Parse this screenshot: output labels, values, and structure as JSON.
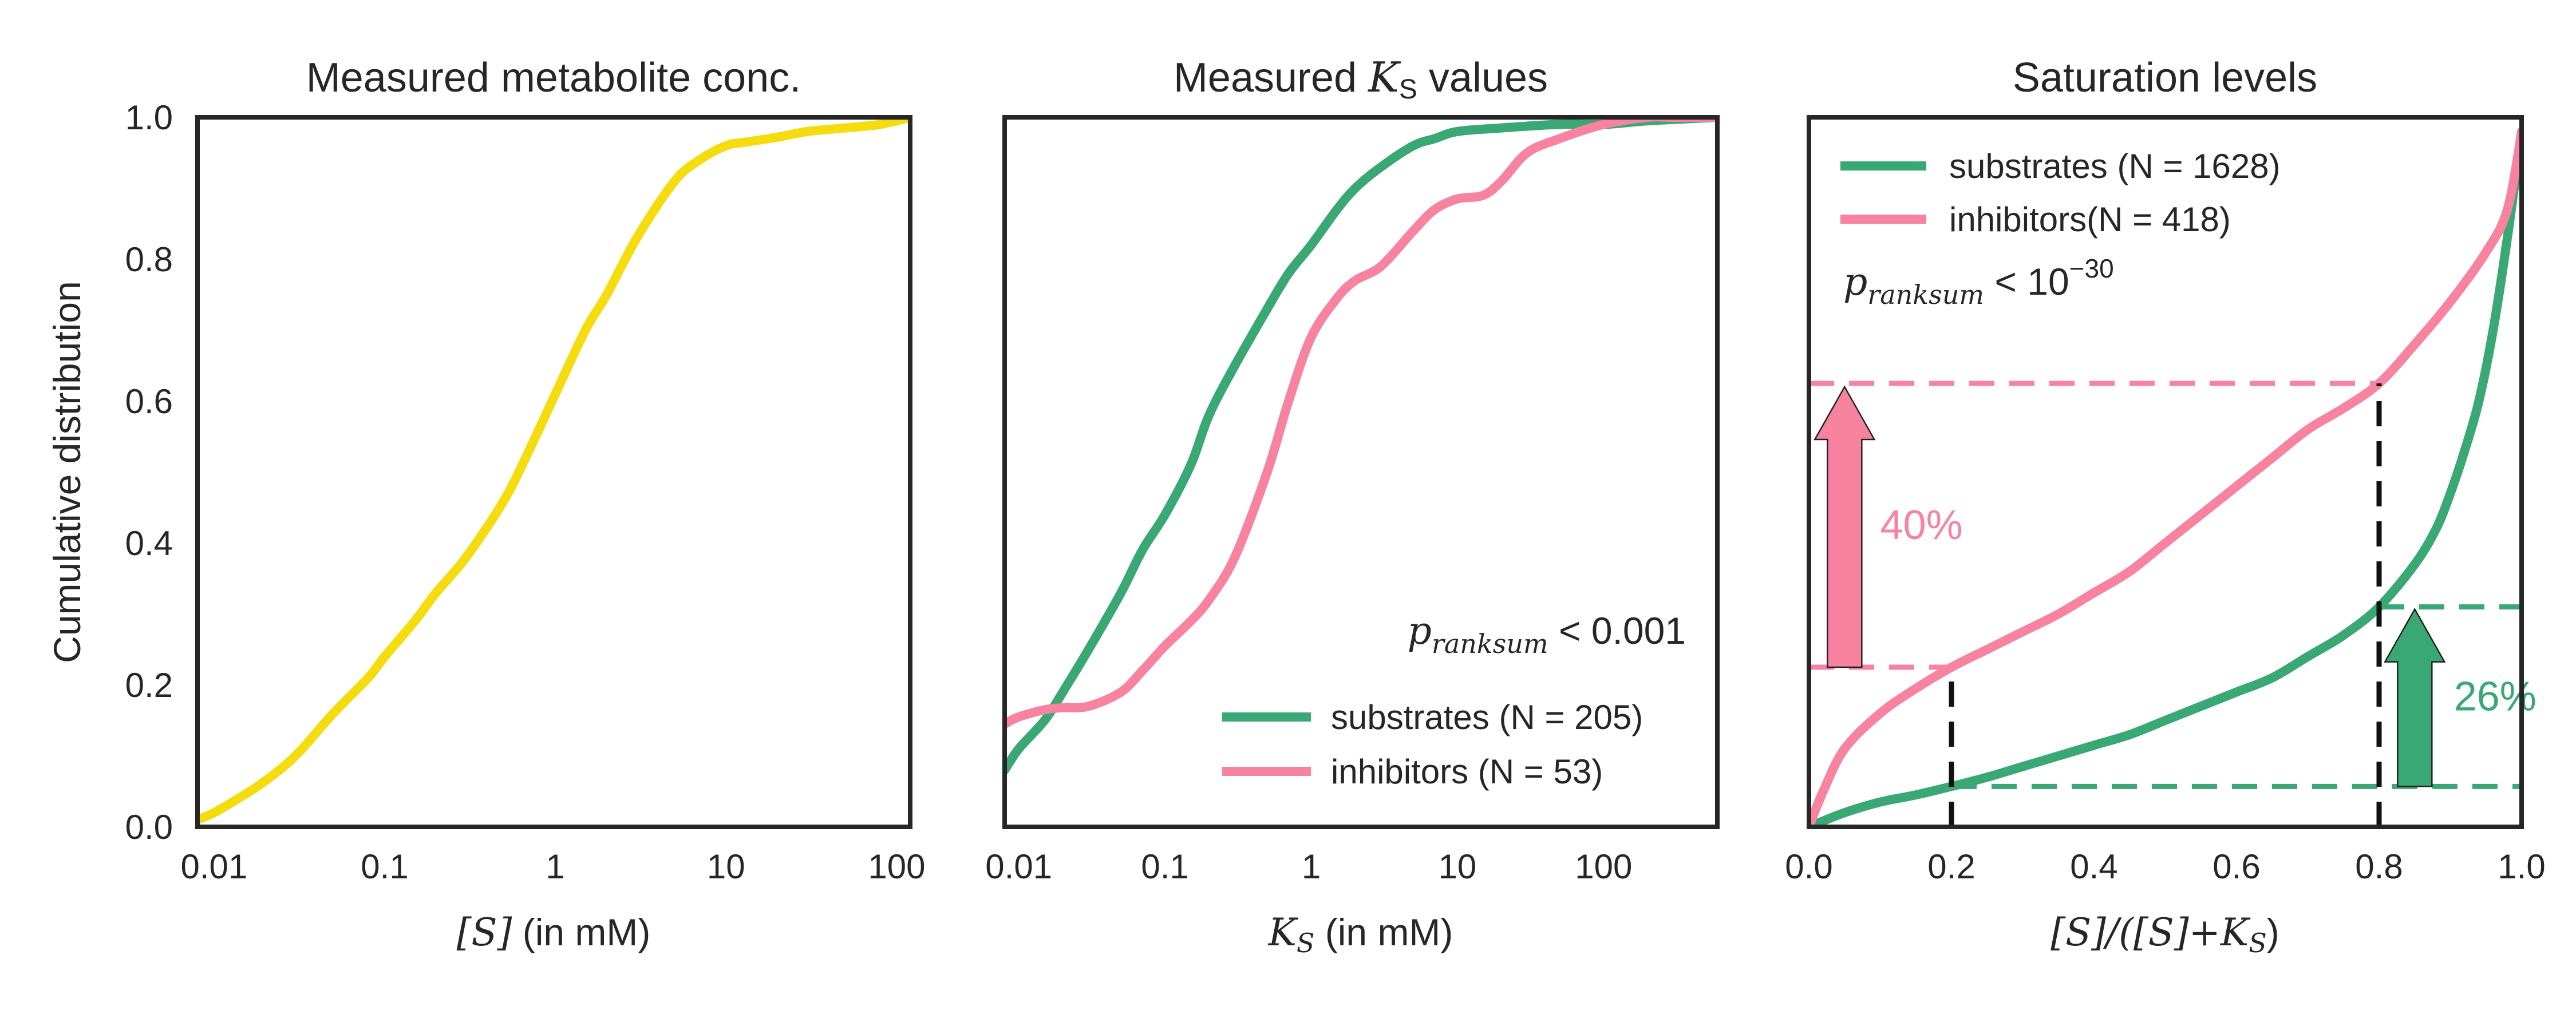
{
  "colors": {
    "yellow": "#f5dc0f",
    "green": "#3aa874",
    "pink": "#f783a0",
    "frame": "#262626",
    "black": "#111111"
  },
  "chart_data": [
    {
      "type": "line",
      "title": "Measured metabolite conc.",
      "xlabel_math": "[S]",
      "xlabel_rest": " (in mM)",
      "ylabel": "Cumulative distribution",
      "xscale": "log",
      "xlim": [
        0.008,
        120
      ],
      "ylim": [
        0,
        1
      ],
      "xticks": [
        0.01,
        0.1,
        1,
        10,
        100
      ],
      "xtick_labels": [
        "0.01",
        "0.1",
        "1",
        "10",
        "100"
      ],
      "yticks": [
        0,
        0.2,
        0.4,
        0.6,
        0.8,
        1.0
      ],
      "ytick_labels": [
        "0.0",
        "0.2",
        "0.4",
        "0.6",
        "0.8",
        "1.0"
      ],
      "series": [
        {
          "color": "yellow",
          "x": [
            0.008,
            0.01,
            0.015,
            0.02,
            0.03,
            0.05,
            0.08,
            0.1,
            0.15,
            0.2,
            0.3,
            0.5,
            0.7,
            1,
            1.5,
            2,
            3,
            5,
            7,
            10,
            13,
            20,
            30,
            50,
            80,
            120
          ],
          "y": [
            0.01,
            0.02,
            0.045,
            0.065,
            0.1,
            0.16,
            0.21,
            0.24,
            0.29,
            0.33,
            0.38,
            0.46,
            0.53,
            0.61,
            0.7,
            0.75,
            0.83,
            0.91,
            0.94,
            0.96,
            0.965,
            0.972,
            0.98,
            0.985,
            0.99,
            1.0
          ]
        }
      ]
    },
    {
      "type": "line",
      "title_pre": "Measured ",
      "title_math": "K",
      "title_sub": "S",
      "title_post": " values",
      "xlabel_math": "K",
      "xlabel_sub": "S",
      "xlabel_rest": " (in mM)",
      "xscale": "log",
      "xlim": [
        0.008,
        600
      ],
      "ylim": [
        0,
        1
      ],
      "xticks": [
        0.01,
        0.1,
        1,
        10,
        100
      ],
      "xtick_labels": [
        "0.01",
        "0.1",
        "1",
        "10",
        "100"
      ],
      "annotation": {
        "p_label": "p",
        "p_sub": "ranksum",
        "p_rest": " < 0.001"
      },
      "series": [
        {
          "name": "substrates (N = 205)",
          "color": "green",
          "x": [
            0.008,
            0.01,
            0.015,
            0.02,
            0.03,
            0.05,
            0.07,
            0.1,
            0.15,
            0.2,
            0.3,
            0.5,
            0.7,
            1,
            1.5,
            2,
            3,
            5,
            7,
            10,
            20,
            50,
            100,
            200,
            600
          ],
          "y": [
            0.08,
            0.11,
            0.15,
            0.19,
            0.25,
            0.33,
            0.39,
            0.44,
            0.51,
            0.58,
            0.65,
            0.73,
            0.78,
            0.82,
            0.87,
            0.9,
            0.93,
            0.96,
            0.97,
            0.98,
            0.985,
            0.99,
            0.99,
            0.995,
            1.0
          ]
        },
        {
          "name": "inhibitors (N = 53)",
          "color": "pink",
          "x": [
            0.008,
            0.01,
            0.015,
            0.02,
            0.03,
            0.05,
            0.07,
            0.1,
            0.15,
            0.2,
            0.3,
            0.5,
            0.7,
            1,
            1.5,
            2,
            3,
            5,
            7,
            10,
            15,
            20,
            30,
            50,
            100,
            200,
            300,
            600
          ],
          "y": [
            0.145,
            0.155,
            0.165,
            0.168,
            0.17,
            0.19,
            0.22,
            0.255,
            0.29,
            0.32,
            0.38,
            0.5,
            0.6,
            0.69,
            0.745,
            0.77,
            0.79,
            0.84,
            0.87,
            0.885,
            0.89,
            0.91,
            0.95,
            0.97,
            0.99,
            1.0,
            1.0,
            1.0
          ]
        }
      ]
    },
    {
      "type": "line",
      "title": "Saturation levels",
      "xlabel_math": "[S]/([S]+K",
      "xlabel_sub": "S",
      "xlabel_post": ")",
      "xscale": "linear",
      "xlim": [
        0,
        1
      ],
      "ylim": [
        0,
        1
      ],
      "xticks": [
        0,
        0.2,
        0.4,
        0.6,
        0.8,
        1.0
      ],
      "xtick_labels": [
        "0.0",
        "0.2",
        "0.4",
        "0.6",
        "0.8",
        "1.0"
      ],
      "annotation": {
        "p_label": "p",
        "p_sub": "ranksum",
        "p_rest": " < 10",
        "p_exp": "−30"
      },
      "series": [
        {
          "name": "substrates (N = 1628)",
          "color": "green",
          "x": [
            0.0,
            0.05,
            0.1,
            0.15,
            0.2,
            0.25,
            0.3,
            0.35,
            0.4,
            0.45,
            0.5,
            0.55,
            0.6,
            0.65,
            0.7,
            0.75,
            0.8,
            0.85,
            0.88,
            0.9,
            0.92,
            0.94,
            0.96,
            0.98,
            1.0
          ],
          "y": [
            0.0,
            0.02,
            0.035,
            0.045,
            0.057,
            0.07,
            0.085,
            0.1,
            0.115,
            0.13,
            0.15,
            0.17,
            0.19,
            0.21,
            0.24,
            0.27,
            0.31,
            0.37,
            0.42,
            0.47,
            0.53,
            0.6,
            0.7,
            0.83,
            0.98
          ]
        },
        {
          "name": "inhibitors(N = 418)",
          "color": "pink",
          "x": [
            0.0,
            0.02,
            0.05,
            0.1,
            0.15,
            0.2,
            0.25,
            0.3,
            0.35,
            0.4,
            0.45,
            0.5,
            0.55,
            0.6,
            0.65,
            0.7,
            0.75,
            0.8,
            0.85,
            0.9,
            0.95,
            0.98,
            1.0
          ],
          "y": [
            0.0,
            0.05,
            0.11,
            0.16,
            0.195,
            0.225,
            0.25,
            0.275,
            0.3,
            0.33,
            0.36,
            0.4,
            0.44,
            0.48,
            0.52,
            0.56,
            0.59,
            0.625,
            0.68,
            0.74,
            0.81,
            0.87,
            0.98
          ]
        }
      ],
      "reference_levels": {
        "x_low": 0.2,
        "x_high": 0.8,
        "pink_low": 0.225,
        "pink_high": 0.625,
        "green_low": 0.057,
        "green_high": 0.31
      },
      "differences": [
        {
          "label": "40%",
          "color": "pink"
        },
        {
          "label": "26%",
          "color": "green"
        }
      ]
    }
  ]
}
